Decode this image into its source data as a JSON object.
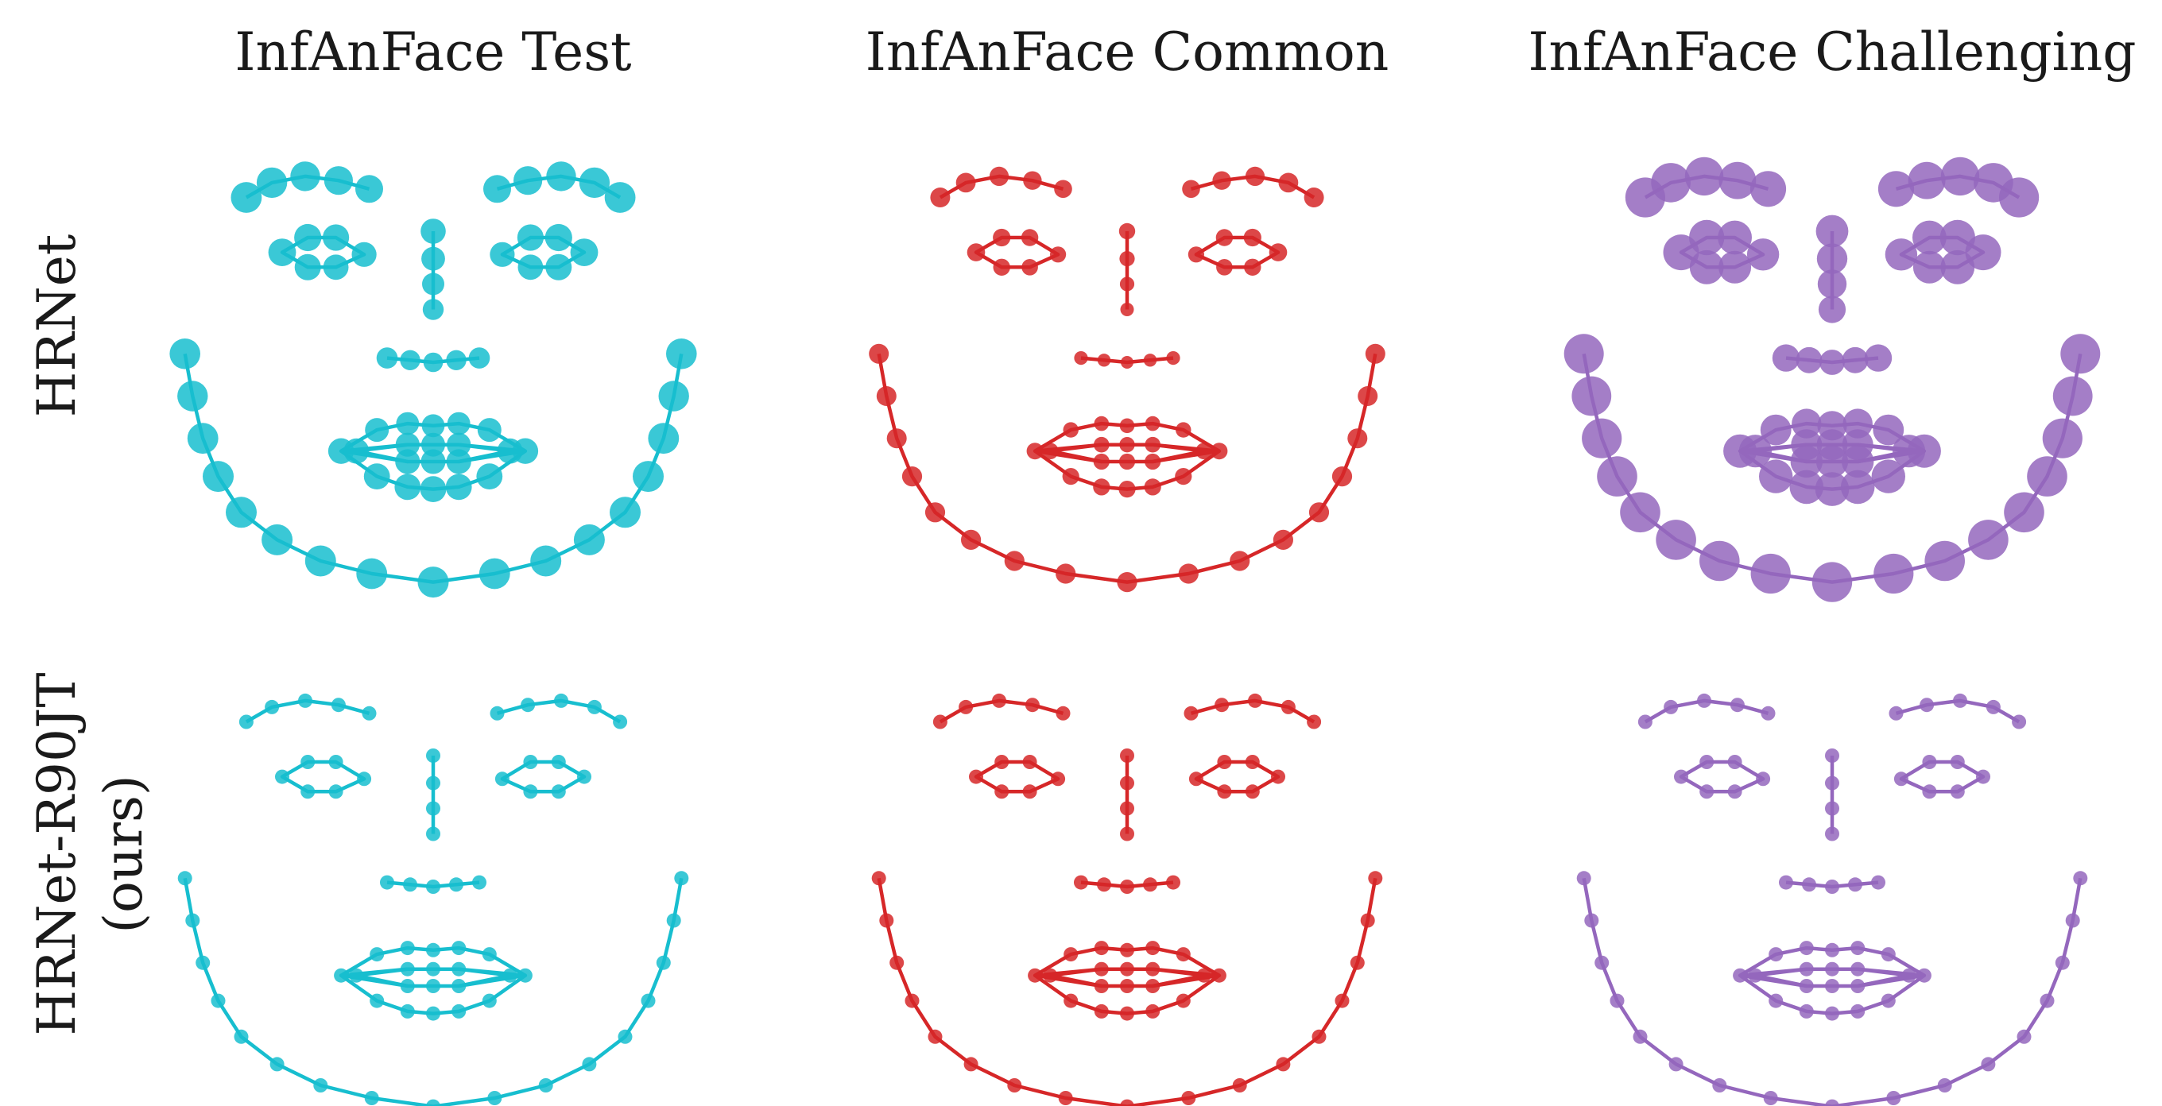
{
  "chart_data": {
    "type": "scatter",
    "columns": [
      "InfAnFace Test",
      "InfAnFace Common",
      "InfAnFace Challenging"
    ],
    "rows": [
      {
        "label_lines": [
          "HRNet"
        ]
      },
      {
        "label_lines": [
          "HRNet-R90JT",
          "(ours)"
        ]
      }
    ],
    "column_colors": [
      "#17becf",
      "#d62728",
      "#9467bd"
    ],
    "axes": "off",
    "grid": false,
    "legend": "none",
    "landmark_template": {
      "jaw": [
        [
          -0.97,
          0.02
        ],
        [
          -0.94,
          0.22
        ],
        [
          -0.9,
          0.42
        ],
        [
          -0.84,
          0.6
        ],
        [
          -0.75,
          0.77
        ],
        [
          -0.61,
          0.9
        ],
        [
          -0.44,
          1.0
        ],
        [
          -0.24,
          1.06
        ],
        [
          0.0,
          1.1
        ],
        [
          0.24,
          1.06
        ],
        [
          0.44,
          1.0
        ],
        [
          0.61,
          0.9
        ],
        [
          0.75,
          0.77
        ],
        [
          0.84,
          0.6
        ],
        [
          0.9,
          0.42
        ],
        [
          0.94,
          0.22
        ],
        [
          0.97,
          0.02
        ]
      ],
      "brow_left": [
        [
          -0.73,
          -0.72
        ],
        [
          -0.63,
          -0.79
        ],
        [
          -0.5,
          -0.82
        ],
        [
          -0.37,
          -0.8
        ],
        [
          -0.25,
          -0.76
        ]
      ],
      "brow_right": [
        [
          0.25,
          -0.76
        ],
        [
          0.37,
          -0.8
        ],
        [
          0.5,
          -0.82
        ],
        [
          0.63,
          -0.79
        ],
        [
          0.73,
          -0.72
        ]
      ],
      "nose_bridge": [
        [
          0.0,
          -0.56
        ],
        [
          0.0,
          -0.43
        ],
        [
          0.0,
          -0.31
        ],
        [
          0.0,
          -0.19
        ]
      ],
      "nose_base": [
        [
          -0.18,
          0.04
        ],
        [
          -0.09,
          0.05
        ],
        [
          0.0,
          0.06
        ],
        [
          0.09,
          0.05
        ],
        [
          0.18,
          0.04
        ]
      ],
      "eye_left": [
        [
          -0.59,
          -0.46
        ],
        [
          -0.49,
          -0.53
        ],
        [
          -0.38,
          -0.53
        ],
        [
          -0.27,
          -0.45
        ],
        [
          -0.38,
          -0.39
        ],
        [
          -0.49,
          -0.39
        ]
      ],
      "eye_right": [
        [
          0.27,
          -0.45
        ],
        [
          0.38,
          -0.53
        ],
        [
          0.49,
          -0.53
        ],
        [
          0.59,
          -0.46
        ],
        [
          0.49,
          -0.39
        ],
        [
          0.38,
          -0.39
        ]
      ],
      "mouth_outer": [
        [
          -0.36,
          0.48
        ],
        [
          -0.22,
          0.38
        ],
        [
          -0.1,
          0.35
        ],
        [
          0.0,
          0.36
        ],
        [
          0.1,
          0.35
        ],
        [
          0.22,
          0.38
        ],
        [
          0.36,
          0.48
        ],
        [
          0.22,
          0.6
        ],
        [
          0.1,
          0.65
        ],
        [
          0.0,
          0.66
        ],
        [
          -0.1,
          0.65
        ],
        [
          -0.22,
          0.6
        ]
      ],
      "mouth_inner": [
        [
          -0.3,
          0.48
        ],
        [
          -0.1,
          0.45
        ],
        [
          0.0,
          0.45
        ],
        [
          0.1,
          0.45
        ],
        [
          0.3,
          0.48
        ],
        [
          0.1,
          0.53
        ],
        [
          0.0,
          0.53
        ],
        [
          -0.1,
          0.53
        ]
      ]
    }
  }
}
